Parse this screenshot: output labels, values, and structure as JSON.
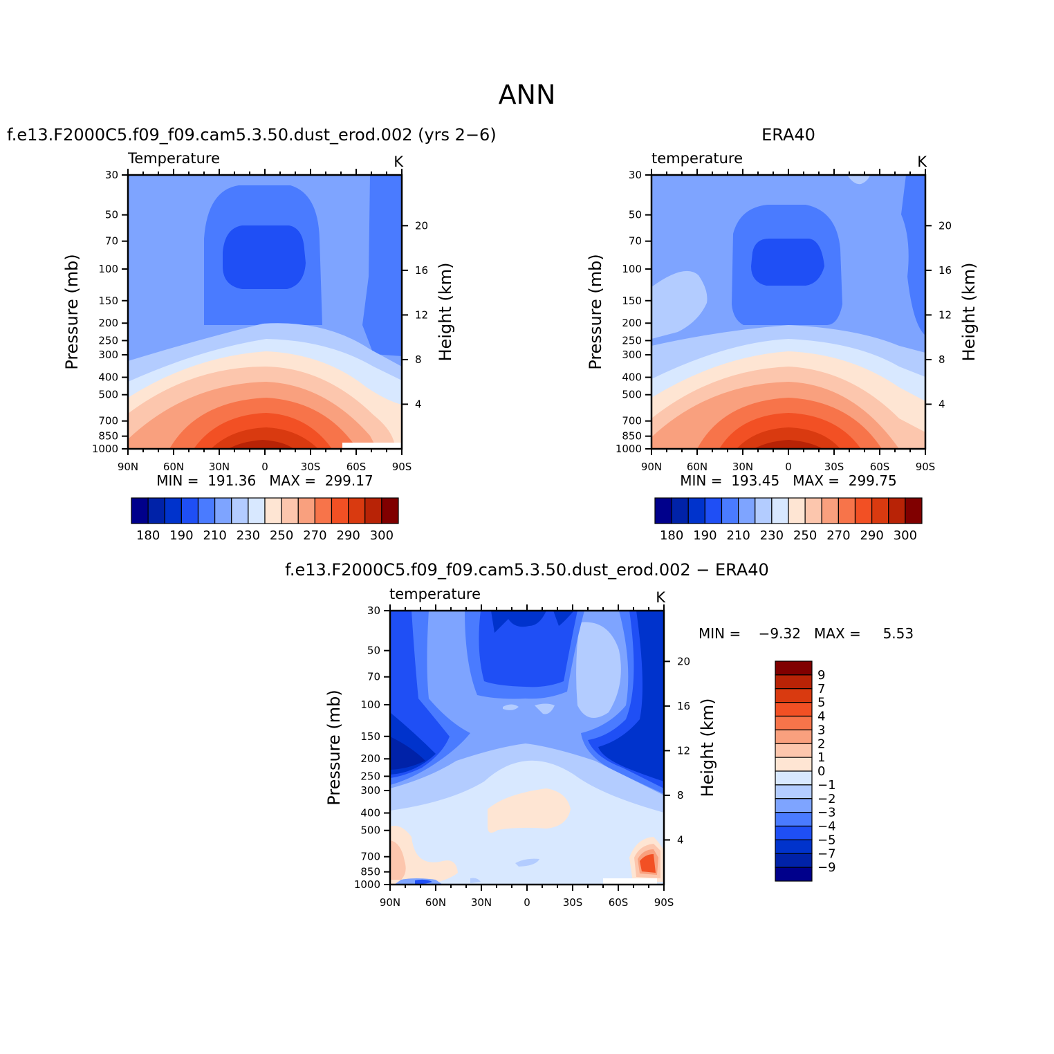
{
  "page": {
    "title": "ANN"
  },
  "colors": {
    "temp_palette": [
      "#00008b",
      "#0022a8",
      "#0033cc",
      "#1f4ff5",
      "#4a7bff",
      "#7ea4ff",
      "#b3ccff",
      "#d8e8ff",
      "#fee5d3",
      "#fcc6ad",
      "#f9a07e",
      "#f7744a",
      "#f25024",
      "#d93a10",
      "#b82306",
      "#800000"
    ],
    "diff_palette": [
      "#00008b",
      "#0022a8",
      "#0033cc",
      "#1f4ff5",
      "#4a7bff",
      "#7ea4ff",
      "#b3ccff",
      "#d8e8ff",
      "#fee5d3",
      "#fcc6ad",
      "#f9a07e",
      "#f7744a",
      "#f25024",
      "#d93a10",
      "#b82306",
      "#800000"
    ]
  },
  "panels": [
    {
      "title": "f.e13.F2000C5.f09_f09.cam5.3.50.dust_erod.002 (yrs 2−6)",
      "left_label": "Temperature",
      "right_label": "K",
      "stats": "MIN =  191.36   MAX =  299.17",
      "ylabel": "Pressure (mb)",
      "y2label": "Height (km)"
    },
    {
      "title": "ERA40",
      "left_label": "temperature",
      "right_label": "K",
      "stats": "MIN =  193.45   MAX =  299.75",
      "ylabel": "Pressure (mb)",
      "y2label": "Height (km)"
    },
    {
      "title": "f.e13.F2000C5.f09_f09.cam5.3.50.dust_erod.002 − ERA40",
      "left_label": "temperature",
      "right_label": "K",
      "stats": "MIN =    −9.32   MAX =     5.53",
      "ylabel": "Pressure (mb)",
      "y2label": "Height (km)"
    }
  ],
  "chart_data": [
    {
      "type": "heatmap",
      "title": "f.e13.F2000C5.f09_f09.cam5.3.50.dust_erod.002 (yrs 2−6)",
      "subtitle_left": "Temperature",
      "units": "K",
      "xlabel": "",
      "ylabel": "Pressure (mb)",
      "y2label": "Height (km)",
      "x_ticks": [
        "90N",
        "60N",
        "30N",
        "0",
        "30S",
        "60S",
        "90S"
      ],
      "y_ticks": [
        30,
        50,
        70,
        100,
        150,
        200,
        250,
        300,
        400,
        500,
        700,
        850,
        1000
      ],
      "y2_ticks": [
        4,
        8,
        12,
        16,
        20
      ],
      "y_scale": "log",
      "min": 191.36,
      "max": 299.17,
      "colorbar_labels": [
        "180",
        "190",
        "210",
        "230",
        "250",
        "270",
        "290",
        "300"
      ],
      "colorbar_orientation": "horizontal",
      "contour_levels": [
        "bg",
        "p1",
        "p2",
        "p3",
        "p4",
        "p5",
        "p6",
        "p7",
        "p8",
        "p9",
        "p10"
      ]
    },
    {
      "type": "heatmap",
      "title": "ERA40",
      "subtitle_left": "temperature",
      "units": "K",
      "xlabel": "",
      "ylabel": "Pressure (mb)",
      "y2label": "Height (km)",
      "x_ticks": [
        "90N",
        "60N",
        "30N",
        "0",
        "30S",
        "60S",
        "90S"
      ],
      "y_ticks": [
        30,
        50,
        70,
        100,
        150,
        200,
        250,
        300,
        400,
        500,
        700,
        850,
        1000
      ],
      "y2_ticks": [
        4,
        8,
        12,
        16,
        20
      ],
      "y_scale": "log",
      "min": 193.45,
      "max": 299.75,
      "colorbar_labels": [
        "180",
        "190",
        "210",
        "230",
        "250",
        "270",
        "290",
        "300"
      ],
      "colorbar_orientation": "horizontal"
    },
    {
      "type": "heatmap",
      "title": "f.e13.F2000C5.f09_f09.cam5.3.50.dust_erod.002 − ERA40",
      "subtitle_left": "temperature",
      "units": "K",
      "xlabel": "",
      "ylabel": "Pressure (mb)",
      "y2label": "Height (km)",
      "x_ticks": [
        "90N",
        "60N",
        "30N",
        "0",
        "30S",
        "60S",
        "90S"
      ],
      "y_ticks": [
        30,
        50,
        70,
        100,
        150,
        200,
        250,
        300,
        400,
        500,
        700,
        850,
        1000
      ],
      "y2_ticks": [
        4,
        8,
        12,
        16,
        20
      ],
      "y_scale": "log",
      "min": -9.32,
      "max": 5.53,
      "colorbar_labels": [
        "9",
        "7",
        "5",
        "4",
        "3",
        "2",
        "1",
        "0",
        "−1",
        "−2",
        "−3",
        "−4",
        "−5",
        "−7",
        "−9"
      ],
      "colorbar_orientation": "vertical"
    }
  ]
}
